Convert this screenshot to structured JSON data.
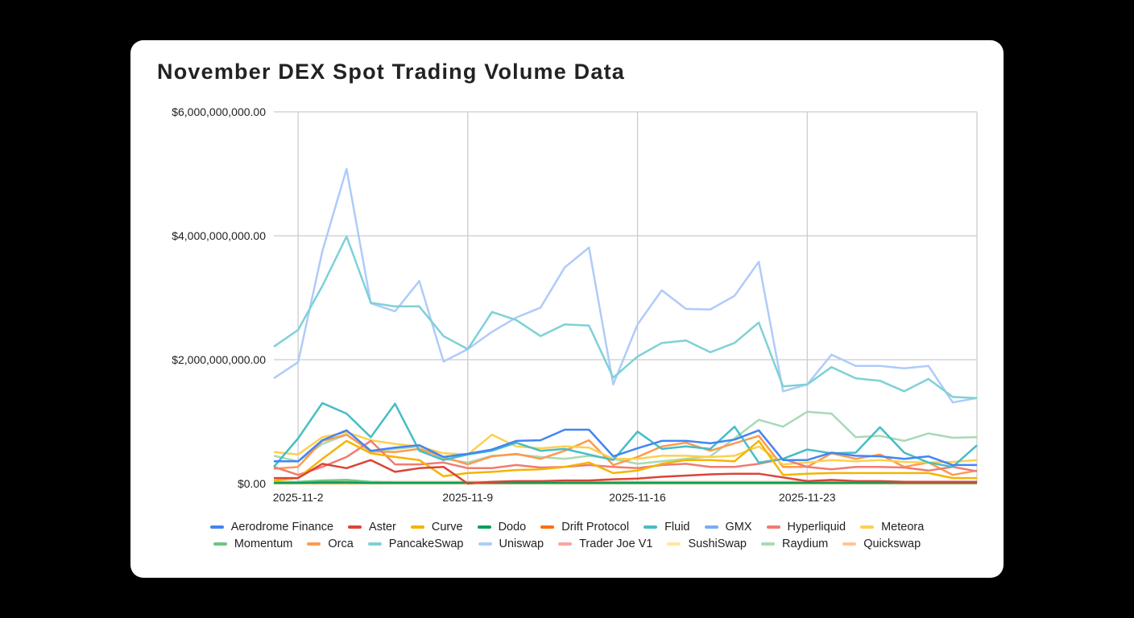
{
  "title": "November DEX Spot Trading Volume Data",
  "chart_data": {
    "type": "line",
    "title": "November DEX Spot Trading Volume Data",
    "xlabel": "",
    "ylabel": "",
    "ylim": [
      0,
      6000000000
    ],
    "y_ticks": [
      0,
      2000000000,
      4000000000,
      6000000000
    ],
    "y_tick_labels": [
      "$0.00",
      "$2,000,000,000.00",
      "$4,000,000,000.00",
      "$6,000,000,000.00"
    ],
    "x_tick_labels": [
      "2025-11-2",
      "2025-11-9",
      "2025-11-16",
      "2025-11-23"
    ],
    "grid": true,
    "legend_position": "bottom",
    "x": [
      "2025-11-1",
      "2025-11-2",
      "2025-11-3",
      "2025-11-4",
      "2025-11-5",
      "2025-11-6",
      "2025-11-7",
      "2025-11-8",
      "2025-11-9",
      "2025-11-10",
      "2025-11-11",
      "2025-11-12",
      "2025-11-13",
      "2025-11-14",
      "2025-11-15",
      "2025-11-16",
      "2025-11-17",
      "2025-11-18",
      "2025-11-19",
      "2025-11-20",
      "2025-11-21",
      "2025-11-22",
      "2025-11-23",
      "2025-11-24",
      "2025-11-25",
      "2025-11-26",
      "2025-11-27",
      "2025-11-28",
      "2025-11-29",
      "2025-11-30"
    ],
    "series_unit": "billions USD",
    "series": [
      {
        "name": "Aerodrome Finance",
        "color": "#4285f4",
        "values": [
          0.36,
          0.36,
          0.7,
          0.86,
          0.53,
          0.58,
          0.62,
          0.43,
          0.48,
          0.55,
          0.69,
          0.7,
          0.87,
          0.87,
          0.44,
          0.57,
          0.69,
          0.69,
          0.65,
          0.71,
          0.86,
          0.38,
          0.38,
          0.5,
          0.45,
          0.44,
          0.4,
          0.44,
          0.3,
          0.3
        ]
      },
      {
        "name": "Aster",
        "color": "#db4437",
        "values": [
          0.09,
          0.09,
          0.32,
          0.25,
          0.38,
          0.19,
          0.25,
          0.27,
          0.0,
          0.03,
          0.04,
          0.04,
          0.05,
          0.05,
          0.07,
          0.08,
          0.11,
          0.13,
          0.15,
          0.16,
          0.16,
          0.1,
          0.04,
          0.06,
          0.04,
          0.04,
          0.03,
          0.03,
          0.03,
          0.03
        ]
      },
      {
        "name": "Curve",
        "color": "#f4b400",
        "values": [
          0.05,
          0.09,
          0.4,
          0.69,
          0.49,
          0.43,
          0.38,
          0.12,
          0.17,
          0.19,
          0.22,
          0.23,
          0.27,
          0.34,
          0.17,
          0.21,
          0.32,
          0.38,
          0.38,
          0.36,
          0.69,
          0.14,
          0.16,
          0.17,
          0.17,
          0.17,
          0.17,
          0.17,
          0.09,
          0.09
        ]
      },
      {
        "name": "Dodo",
        "color": "#0f9d58",
        "values": [
          0.01,
          0.01,
          0.02,
          0.02,
          0.01,
          0.01,
          0.01,
          0.01,
          0.01,
          0.01,
          0.01,
          0.01,
          0.01,
          0.01,
          0.01,
          0.01,
          0.01,
          0.01,
          0.01,
          0.01,
          0.01,
          0.01,
          0.01,
          0.01,
          0.01,
          0.01,
          0.01,
          0.01,
          0.01,
          0.01
        ]
      },
      {
        "name": "Drift Protocol",
        "color": "#ff6d01",
        "values": [
          0.01,
          0.01,
          0.01,
          0.01,
          0.01,
          0.01,
          0.01,
          0.01,
          0.01,
          0.01,
          0.01,
          0.01,
          0.01,
          0.01,
          0.01,
          0.01,
          0.01,
          0.01,
          0.01,
          0.01,
          0.01,
          0.01,
          0.01,
          0.01,
          0.01,
          0.01,
          0.01,
          0.01,
          0.01,
          0.01
        ]
      },
      {
        "name": "Fluid",
        "color": "#46bdc6",
        "values": [
          0.27,
          0.73,
          1.3,
          1.13,
          0.75,
          1.29,
          0.53,
          0.38,
          0.47,
          0.53,
          0.66,
          0.53,
          0.56,
          0.47,
          0.38,
          0.84,
          0.56,
          0.6,
          0.56,
          0.92,
          0.34,
          0.4,
          0.55,
          0.49,
          0.5,
          0.91,
          0.5,
          0.34,
          0.27,
          0.62
        ]
      },
      {
        "name": "GMX",
        "color": "#7baaf7",
        "values": [
          0.02,
          0.02,
          0.02,
          0.02,
          0.02,
          0.02,
          0.02,
          0.02,
          0.02,
          0.02,
          0.02,
          0.02,
          0.02,
          0.02,
          0.02,
          0.02,
          0.02,
          0.02,
          0.02,
          0.02,
          0.02,
          0.02,
          0.02,
          0.02,
          0.02,
          0.02,
          0.02,
          0.02,
          0.02,
          0.02
        ]
      },
      {
        "name": "Hyperliquid",
        "color": "#f07b72",
        "values": [
          0.27,
          0.14,
          0.27,
          0.43,
          0.69,
          0.31,
          0.31,
          0.34,
          0.25,
          0.25,
          0.3,
          0.26,
          0.27,
          0.3,
          0.27,
          0.25,
          0.3,
          0.32,
          0.27,
          0.27,
          0.32,
          0.4,
          0.27,
          0.23,
          0.27,
          0.27,
          0.26,
          0.21,
          0.27,
          0.2
        ]
      },
      {
        "name": "Meteora",
        "color": "#fcd04f",
        "values": [
          0.51,
          0.47,
          0.75,
          0.83,
          0.7,
          0.64,
          0.6,
          0.49,
          0.47,
          0.79,
          0.6,
          0.57,
          0.6,
          0.58,
          0.4,
          0.4,
          0.45,
          0.45,
          0.43,
          0.45,
          0.6,
          0.31,
          0.34,
          0.38,
          0.36,
          0.38,
          0.35,
          0.34,
          0.35,
          0.38
        ]
      },
      {
        "name": "Momentum",
        "color": "#71c287",
        "values": [
          0.02,
          0.03,
          0.05,
          0.06,
          0.03,
          0.02,
          0.02,
          0.02,
          0.02,
          0.02,
          0.02,
          0.02,
          0.02,
          0.02,
          0.02,
          0.02,
          0.02,
          0.02,
          0.02,
          0.02,
          0.02,
          0.02,
          0.02,
          0.02,
          0.02,
          0.02,
          0.02,
          0.02,
          0.02,
          0.02
        ]
      },
      {
        "name": "Orca",
        "color": "#ff994d",
        "values": [
          0.24,
          0.27,
          0.69,
          0.79,
          0.52,
          0.51,
          0.56,
          0.43,
          0.31,
          0.44,
          0.48,
          0.4,
          0.53,
          0.7,
          0.3,
          0.43,
          0.6,
          0.66,
          0.53,
          0.65,
          0.77,
          0.27,
          0.27,
          0.49,
          0.4,
          0.47,
          0.27,
          0.34,
          0.14,
          0.21
        ]
      },
      {
        "name": "PancakeSwap",
        "color": "#7ed1d7",
        "values": [
          2.21,
          2.48,
          3.19,
          3.99,
          2.92,
          2.86,
          2.86,
          2.38,
          2.17,
          2.77,
          2.64,
          2.38,
          2.57,
          2.55,
          1.71,
          2.05,
          2.27,
          2.31,
          2.12,
          2.27,
          2.6,
          1.57,
          1.6,
          1.88,
          1.7,
          1.66,
          1.49,
          1.69,
          1.4,
          1.38
        ]
      },
      {
        "name": "Uniswap",
        "color": "#afcbfa",
        "values": [
          1.7,
          1.96,
          3.75,
          5.08,
          2.91,
          2.78,
          3.27,
          1.97,
          2.17,
          2.45,
          2.68,
          2.84,
          3.49,
          3.81,
          1.6,
          2.57,
          3.12,
          2.82,
          2.81,
          3.03,
          3.58,
          1.49,
          1.6,
          2.08,
          1.9,
          1.9,
          1.86,
          1.9,
          1.31,
          1.38
        ]
      },
      {
        "name": "Trader Joe V1",
        "color": "#f7a7a0",
        "values": [
          0.01,
          0.01,
          0.01,
          0.01,
          0.01,
          0.01,
          0.01,
          0.01,
          0.01,
          0.01,
          0.01,
          0.01,
          0.01,
          0.01,
          0.01,
          0.01,
          0.01,
          0.01,
          0.01,
          0.01,
          0.01,
          0.01,
          0.01,
          0.01,
          0.01,
          0.01,
          0.01,
          0.01,
          0.01,
          0.01
        ]
      },
      {
        "name": "SushiSwap",
        "color": "#fde69f",
        "values": [
          0.0,
          0.0,
          0.0,
          0.0,
          0.0,
          0.0,
          0.0,
          0.0,
          0.0,
          0.0,
          0.0,
          0.0,
          0.0,
          0.0,
          0.0,
          0.0,
          0.0,
          0.0,
          0.0,
          0.0,
          0.0,
          0.0,
          0.0,
          0.0,
          0.0,
          0.0,
          0.0,
          0.0,
          0.0,
          0.0
        ]
      },
      {
        "name": "Raydium",
        "color": "#a8dab5",
        "values": [
          0.45,
          0.36,
          0.64,
          0.79,
          0.53,
          0.56,
          0.6,
          0.4,
          0.34,
          0.45,
          0.47,
          0.43,
          0.4,
          0.45,
          0.4,
          0.32,
          0.36,
          0.4,
          0.44,
          0.73,
          1.03,
          0.92,
          1.16,
          1.13,
          0.75,
          0.77,
          0.69,
          0.81,
          0.74,
          0.75
        ]
      },
      {
        "name": "Quickswap",
        "color": "#ffc599",
        "values": [
          0.03,
          0.03,
          0.03,
          0.03,
          0.03,
          0.03,
          0.03,
          0.03,
          0.03,
          0.03,
          0.03,
          0.03,
          0.03,
          0.03,
          0.03,
          0.03,
          0.03,
          0.03,
          0.03,
          0.03,
          0.03,
          0.03,
          0.03,
          0.03,
          0.03,
          0.03,
          0.03,
          0.03,
          0.03,
          0.03
        ]
      }
    ]
  }
}
